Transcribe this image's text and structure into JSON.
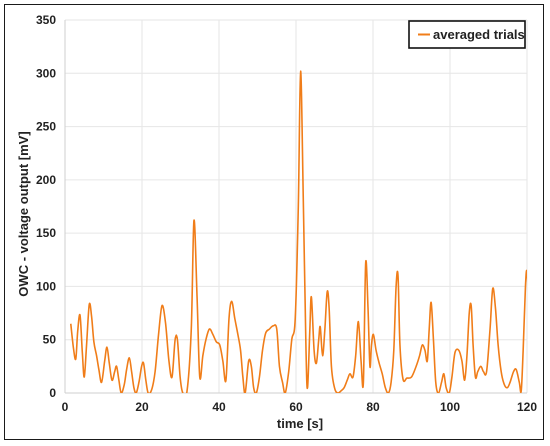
{
  "chart_data": {
    "type": "line",
    "title": "",
    "xlabel": "time [s]",
    "ylabel": "OWC - voltage output [mV]",
    "xlim": [
      0,
      120
    ],
    "ylim": [
      0,
      350
    ],
    "xticks": [
      0,
      20,
      40,
      60,
      80,
      100,
      120
    ],
    "yticks": [
      0,
      50,
      100,
      150,
      200,
      250,
      300,
      350
    ],
    "grid": true,
    "legend_position": "top-right",
    "colors": {
      "series": "#f07d19",
      "grid": "#e6e6e6",
      "axis": "#222222"
    },
    "series": [
      {
        "name": "averaged trials",
        "points": [
          [
            1.5,
            65
          ],
          [
            2.2,
            42
          ],
          [
            2.8,
            32
          ],
          [
            3.3,
            58
          ],
          [
            3.9,
            73
          ],
          [
            4.5,
            38
          ],
          [
            5.0,
            15
          ],
          [
            5.6,
            45
          ],
          [
            6.3,
            83
          ],
          [
            6.9,
            72
          ],
          [
            7.5,
            48
          ],
          [
            8.2,
            35
          ],
          [
            8.8,
            22
          ],
          [
            9.5,
            10
          ],
          [
            10.3,
            30
          ],
          [
            10.9,
            43
          ],
          [
            11.5,
            28
          ],
          [
            12.2,
            12
          ],
          [
            12.9,
            20
          ],
          [
            13.4,
            25
          ],
          [
            14.0,
            12
          ],
          [
            14.6,
            0
          ],
          [
            15.4,
            8
          ],
          [
            16.0,
            22
          ],
          [
            16.7,
            33
          ],
          [
            17.3,
            20
          ],
          [
            17.9,
            5
          ],
          [
            18.5,
            0
          ],
          [
            19.2,
            10
          ],
          [
            19.9,
            25
          ],
          [
            20.4,
            28
          ],
          [
            21.0,
            12
          ],
          [
            21.6,
            0
          ],
          [
            22.5,
            3
          ],
          [
            23.4,
            20
          ],
          [
            24.3,
            55
          ],
          [
            25.2,
            82
          ],
          [
            26.1,
            66
          ],
          [
            27.0,
            30
          ],
          [
            27.8,
            15
          ],
          [
            28.6,
            50
          ],
          [
            29.2,
            50
          ],
          [
            29.9,
            15
          ],
          [
            30.6,
            0
          ],
          [
            31.7,
            2
          ],
          [
            32.8,
            60
          ],
          [
            33.5,
            162
          ],
          [
            34.3,
            90
          ],
          [
            35.0,
            15
          ],
          [
            35.8,
            35
          ],
          [
            36.6,
            50
          ],
          [
            37.5,
            60
          ],
          [
            38.4,
            55
          ],
          [
            39.3,
            48
          ],
          [
            40.2,
            45
          ],
          [
            41.0,
            30
          ],
          [
            41.8,
            12
          ],
          [
            42.6,
            70
          ],
          [
            43.3,
            86
          ],
          [
            44.1,
            70
          ],
          [
            44.9,
            55
          ],
          [
            45.6,
            40
          ],
          [
            46.2,
            15
          ],
          [
            46.8,
            0
          ],
          [
            47.7,
            30
          ],
          [
            48.4,
            25
          ],
          [
            49.0,
            5
          ],
          [
            49.7,
            0
          ],
          [
            50.5,
            15
          ],
          [
            51.3,
            40
          ],
          [
            52.1,
            56
          ],
          [
            53.1,
            60
          ],
          [
            54.1,
            63
          ],
          [
            55.0,
            60
          ],
          [
            55.7,
            25
          ],
          [
            56.5,
            10
          ],
          [
            57.2,
            0
          ],
          [
            58.1,
            20
          ],
          [
            58.9,
            50
          ],
          [
            59.8,
            70
          ],
          [
            60.6,
            175
          ],
          [
            61.2,
            302
          ],
          [
            61.9,
            180
          ],
          [
            62.6,
            40
          ],
          [
            63.0,
            5
          ],
          [
            63.6,
            60
          ],
          [
            64.0,
            90
          ],
          [
            64.7,
            40
          ],
          [
            65.3,
            28
          ],
          [
            65.9,
            50
          ],
          [
            66.3,
            62
          ],
          [
            66.9,
            35
          ],
          [
            67.5,
            60
          ],
          [
            68.1,
            95
          ],
          [
            68.6,
            80
          ],
          [
            69.2,
            25
          ],
          [
            70.0,
            5
          ],
          [
            70.8,
            0
          ],
          [
            71.7,
            2
          ],
          [
            72.5,
            5
          ],
          [
            73.3,
            12
          ],
          [
            74.0,
            18
          ],
          [
            74.8,
            15
          ],
          [
            75.5,
            35
          ],
          [
            76.2,
            67
          ],
          [
            76.9,
            30
          ],
          [
            77.5,
            10
          ],
          [
            78.1,
            122
          ],
          [
            78.7,
            80
          ],
          [
            79.2,
            25
          ],
          [
            79.6,
            45
          ],
          [
            80.1,
            55
          ],
          [
            80.8,
            40
          ],
          [
            81.6,
            28
          ],
          [
            82.4,
            18
          ],
          [
            83.2,
            5
          ],
          [
            84.0,
            0
          ],
          [
            84.7,
            10
          ],
          [
            85.4,
            40
          ],
          [
            86.0,
            100
          ],
          [
            86.5,
            110
          ],
          [
            87.0,
            45
          ],
          [
            87.8,
            13
          ],
          [
            88.8,
            14
          ],
          [
            90.0,
            15
          ],
          [
            91.2,
            25
          ],
          [
            92.1,
            35
          ],
          [
            92.8,
            45
          ],
          [
            93.5,
            40
          ],
          [
            94.1,
            30
          ],
          [
            94.6,
            60
          ],
          [
            95.1,
            85
          ],
          [
            95.7,
            50
          ],
          [
            96.3,
            10
          ],
          [
            97.0,
            0
          ],
          [
            97.8,
            10
          ],
          [
            98.4,
            18
          ],
          [
            99.0,
            5
          ],
          [
            99.8,
            0
          ],
          [
            100.5,
            15
          ],
          [
            101.3,
            38
          ],
          [
            102.3,
            40
          ],
          [
            103.1,
            30
          ],
          [
            103.8,
            12
          ],
          [
            104.4,
            35
          ],
          [
            105.0,
            75
          ],
          [
            105.5,
            82
          ],
          [
            106.0,
            45
          ],
          [
            106.6,
            15
          ],
          [
            107.2,
            20
          ],
          [
            108.0,
            25
          ],
          [
            108.7,
            20
          ],
          [
            109.5,
            20
          ],
          [
            110.4,
            60
          ],
          [
            111.1,
            98
          ],
          [
            111.8,
            80
          ],
          [
            112.5,
            45
          ],
          [
            113.3,
            20
          ],
          [
            114.1,
            8
          ],
          [
            114.9,
            5
          ],
          [
            115.6,
            10
          ],
          [
            116.5,
            20
          ],
          [
            117.2,
            22
          ],
          [
            118.0,
            10
          ],
          [
            118.5,
            2
          ],
          [
            119.0,
            40
          ],
          [
            119.6,
            100
          ],
          [
            120.0,
            114
          ],
          [
            120.6,
            80
          ],
          [
            121.3,
            58
          ]
        ]
      }
    ]
  }
}
